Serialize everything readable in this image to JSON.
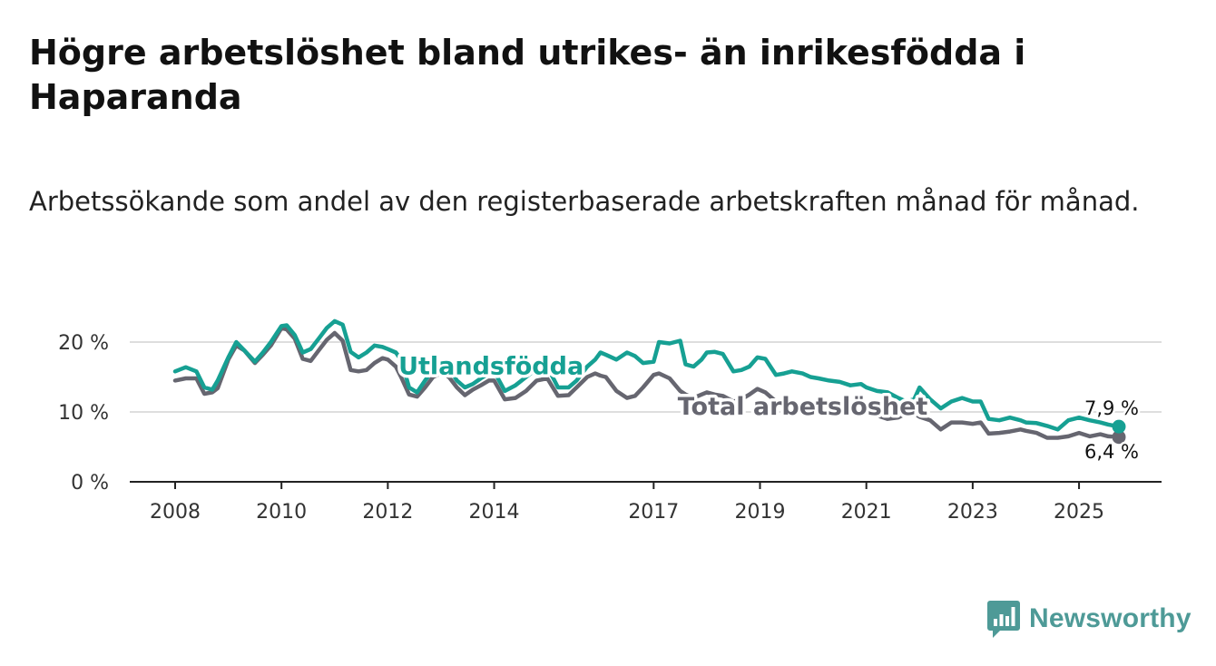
{
  "title": "Högre arbetslöshet bland utrikes- än inrikesfödda i Haparanda",
  "subtitle": "Arbetssökande som andel av den registerbaserade arbetskraften månad för månad.",
  "brand": {
    "name": "Newsworthy",
    "color": "#4e9a97",
    "icon": "bar-chart-icon"
  },
  "colors": {
    "teal": "#16a093",
    "gray": "#666670",
    "grid": "#d4d4d4",
    "axis": "#222222"
  },
  "chart_data": {
    "type": "line",
    "xlim": [
      2008,
      2025.75
    ],
    "ylim": [
      0,
      20
    ],
    "y_ticks": [
      0,
      10,
      20
    ],
    "y_tick_labels": [
      "0 %",
      "10 %",
      "20 %"
    ],
    "x_ticks": [
      2008,
      2010,
      2012,
      2014,
      2017,
      2019,
      2021,
      2023,
      2025
    ],
    "x_tick_labels": [
      "2008",
      "2010",
      "2012",
      "2014",
      "2017",
      "2019",
      "2021",
      "2023",
      "2025"
    ],
    "series": [
      {
        "name": "Utlandsfödda",
        "label": "Utlandsfödda",
        "color": "#16a093",
        "end_label": "7,9 %",
        "x": [
          2008.0,
          2008.2,
          2008.4,
          2008.55,
          2008.7,
          2008.8,
          2009.0,
          2009.15,
          2009.3,
          2009.5,
          2009.65,
          2009.8,
          2010.0,
          2010.1,
          2010.25,
          2010.4,
          2010.55,
          2010.7,
          2010.85,
          2011.0,
          2011.15,
          2011.3,
          2011.45,
          2011.6,
          2011.75,
          2011.9,
          2012.0,
          2012.15,
          2012.25,
          2012.4,
          2012.55,
          2012.7,
          2012.85,
          2013.0,
          2013.15,
          2013.3,
          2013.45,
          2013.6,
          2013.75,
          2013.9,
          2014.0,
          2014.2,
          2014.4,
          2014.6,
          2014.8,
          2015.0,
          2015.2,
          2015.4,
          2015.55,
          2015.75,
          2015.9,
          2016.0,
          2016.1,
          2016.3,
          2016.5,
          2016.65,
          2016.8,
          2017.0,
          2017.1,
          2017.3,
          2017.5,
          2017.6,
          2017.75,
          2017.9,
          2018.0,
          2018.15,
          2018.3,
          2018.5,
          2018.65,
          2018.8,
          2018.95,
          2019.1,
          2019.3,
          2019.45,
          2019.6,
          2019.8,
          2019.95,
          2020.1,
          2020.3,
          2020.5,
          2020.7,
          2020.9,
          2021.0,
          2021.2,
          2021.4,
          2021.6,
          2021.75,
          2021.9,
          2022.0,
          2022.2,
          2022.4,
          2022.6,
          2022.8,
          2023.0,
          2023.15,
          2023.3,
          2023.5,
          2023.7,
          2023.9,
          2024.0,
          2024.2,
          2024.4,
          2024.6,
          2024.8,
          2025.0,
          2025.2,
          2025.4,
          2025.55,
          2025.75
        ],
        "y": [
          15.8,
          16.4,
          15.8,
          13.5,
          13.2,
          14.5,
          17.8,
          20.0,
          18.8,
          17.2,
          18.5,
          20.0,
          22.3,
          22.4,
          21.0,
          18.5,
          19.0,
          20.5,
          22.0,
          23.0,
          22.5,
          18.6,
          17.8,
          18.5,
          19.5,
          19.3,
          19.0,
          18.5,
          17.5,
          13.5,
          12.8,
          14.5,
          16.0,
          16.5,
          16.2,
          14.5,
          13.5,
          14.0,
          14.8,
          15.5,
          15.8,
          13.0,
          13.8,
          15.0,
          16.2,
          16.5,
          13.5,
          13.5,
          14.5,
          16.5,
          17.5,
          18.5,
          18.2,
          17.5,
          18.5,
          18.0,
          17.0,
          17.2,
          20.0,
          19.8,
          20.2,
          16.8,
          16.5,
          17.5,
          18.5,
          18.6,
          18.3,
          15.8,
          16.0,
          16.5,
          17.8,
          17.6,
          15.3,
          15.5,
          15.8,
          15.5,
          15.0,
          14.8,
          14.5,
          14.3,
          13.8,
          14.0,
          13.5,
          13.0,
          12.8,
          12.0,
          11.5,
          11.8,
          13.5,
          11.8,
          10.5,
          11.5,
          12.0,
          11.5,
          11.5,
          9.0,
          8.8,
          9.2,
          8.8,
          8.5,
          8.4,
          8.0,
          7.5,
          8.8,
          9.2,
          8.8,
          8.5,
          8.2,
          7.9
        ]
      },
      {
        "name": "Total arbetslöshet",
        "label": "Total arbetslöshet",
        "color": "#666670",
        "end_label": "6,4 %",
        "x": [
          2008.0,
          2008.2,
          2008.4,
          2008.55,
          2008.7,
          2008.8,
          2009.0,
          2009.15,
          2009.3,
          2009.5,
          2009.65,
          2009.8,
          2010.0,
          2010.1,
          2010.25,
          2010.4,
          2010.55,
          2010.7,
          2010.85,
          2011.0,
          2011.15,
          2011.3,
          2011.45,
          2011.6,
          2011.75,
          2011.9,
          2012.0,
          2012.15,
          2012.25,
          2012.4,
          2012.55,
          2012.7,
          2012.85,
          2013.0,
          2013.15,
          2013.3,
          2013.45,
          2013.6,
          2013.75,
          2013.9,
          2014.0,
          2014.2,
          2014.4,
          2014.6,
          2014.8,
          2015.0,
          2015.2,
          2015.4,
          2015.55,
          2015.75,
          2015.9,
          2016.0,
          2016.1,
          2016.3,
          2016.5,
          2016.65,
          2016.8,
          2017.0,
          2017.1,
          2017.3,
          2017.5,
          2017.6,
          2017.75,
          2017.9,
          2018.0,
          2018.15,
          2018.3,
          2018.5,
          2018.65,
          2018.8,
          2018.95,
          2019.1,
          2019.3,
          2019.45,
          2019.6,
          2019.8,
          2019.95,
          2020.1,
          2020.3,
          2020.5,
          2020.7,
          2020.9,
          2021.0,
          2021.2,
          2021.4,
          2021.6,
          2021.75,
          2021.9,
          2022.0,
          2022.2,
          2022.4,
          2022.6,
          2022.8,
          2023.0,
          2023.15,
          2023.3,
          2023.5,
          2023.7,
          2023.9,
          2024.0,
          2024.2,
          2024.4,
          2024.6,
          2024.8,
          2025.0,
          2025.2,
          2025.4,
          2025.55,
          2025.75
        ],
        "y": [
          14.5,
          14.8,
          14.8,
          12.6,
          12.8,
          13.4,
          17.5,
          19.5,
          18.8,
          17.0,
          18.2,
          19.5,
          22.0,
          21.8,
          20.5,
          17.6,
          17.3,
          18.8,
          20.3,
          21.3,
          20.2,
          16.0,
          15.8,
          16.0,
          17.0,
          17.7,
          17.5,
          16.5,
          15.0,
          12.5,
          12.2,
          13.5,
          15.0,
          15.5,
          15.0,
          13.5,
          12.4,
          13.2,
          13.8,
          14.5,
          14.5,
          11.8,
          12.0,
          13.0,
          14.5,
          14.8,
          12.3,
          12.4,
          13.5,
          15.0,
          15.5,
          15.2,
          15.0,
          13.0,
          12.0,
          12.3,
          13.5,
          15.3,
          15.5,
          14.8,
          13.0,
          12.5,
          12.0,
          12.5,
          12.8,
          12.5,
          12.3,
          11.5,
          11.8,
          12.5,
          13.3,
          12.8,
          11.5,
          11.4,
          11.3,
          11.0,
          11.3,
          11.0,
          10.8,
          10.5,
          10.3,
          10.5,
          10.0,
          9.5,
          9.0,
          9.2,
          9.8,
          9.8,
          9.3,
          8.8,
          7.5,
          8.5,
          8.5,
          8.3,
          8.5,
          6.9,
          7.0,
          7.2,
          7.5,
          7.3,
          7.0,
          6.3,
          6.3,
          6.5,
          7.0,
          6.5,
          6.8,
          6.5,
          6.4
        ]
      }
    ]
  }
}
